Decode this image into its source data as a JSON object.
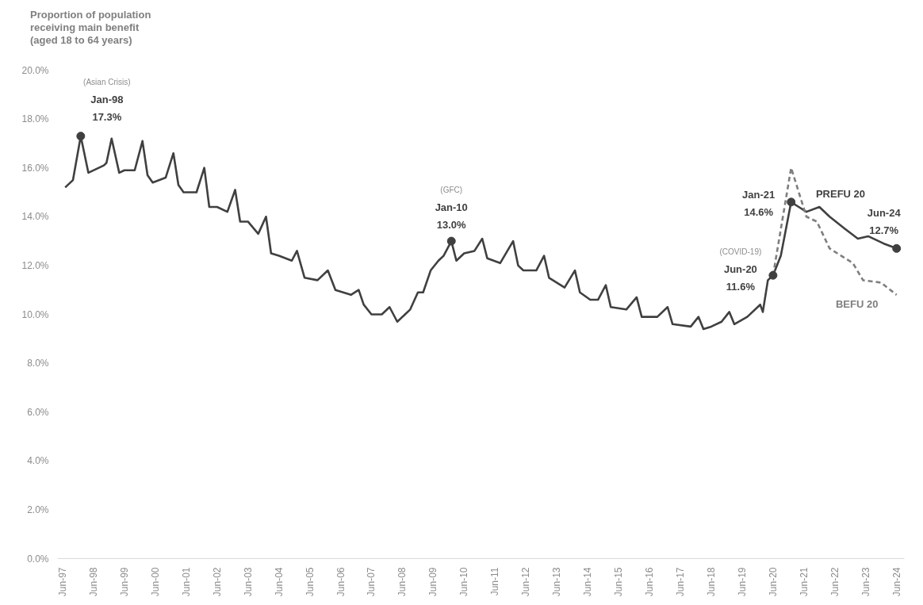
{
  "chart_data": {
    "type": "line",
    "ylabel": "Proportion of population\nreceiving main benefit\n(aged 18 to 64 years)",
    "xlim": [
      "1997-04",
      "2024-09"
    ],
    "xticks": [
      {
        "value": "1997-06",
        "label": "Jun-97"
      },
      {
        "value": "1998-06",
        "label": "Jun-98"
      },
      {
        "value": "1999-06",
        "label": "Jun-99"
      },
      {
        "value": "2000-06",
        "label": "Jun-00"
      },
      {
        "value": "2001-06",
        "label": "Jun-01"
      },
      {
        "value": "2002-06",
        "label": "Jun-02"
      },
      {
        "value": "2003-06",
        "label": "Jun-03"
      },
      {
        "value": "2004-06",
        "label": "Jun-04"
      },
      {
        "value": "2005-06",
        "label": "Jun-05"
      },
      {
        "value": "2006-06",
        "label": "Jun-06"
      },
      {
        "value": "2007-06",
        "label": "Jun-07"
      },
      {
        "value": "2008-06",
        "label": "Jun-08"
      },
      {
        "value": "2009-06",
        "label": "Jun-09"
      },
      {
        "value": "2010-06",
        "label": "Jun-10"
      },
      {
        "value": "2011-06",
        "label": "Jun-11"
      },
      {
        "value": "2012-06",
        "label": "Jun-12"
      },
      {
        "value": "2013-06",
        "label": "Jun-13"
      },
      {
        "value": "2014-06",
        "label": "Jun-14"
      },
      {
        "value": "2015-06",
        "label": "Jun-15"
      },
      {
        "value": "2016-06",
        "label": "Jun-16"
      },
      {
        "value": "2017-06",
        "label": "Jun-17"
      },
      {
        "value": "2018-06",
        "label": "Jun-18"
      },
      {
        "value": "2019-06",
        "label": "Jun-19"
      },
      {
        "value": "2020-06",
        "label": "Jun-20"
      },
      {
        "value": "2021-06",
        "label": "Jun-21"
      },
      {
        "value": "2022-06",
        "label": "Jun-22"
      },
      {
        "value": "2023-06",
        "label": "Jun-23"
      },
      {
        "value": "2024-06",
        "label": "Jun-24"
      }
    ],
    "ylim": [
      0,
      20
    ],
    "yticks": [
      {
        "value": 0,
        "label": "0.0%"
      },
      {
        "value": 2,
        "label": "2.0%"
      },
      {
        "value": 4,
        "label": "4.0%"
      },
      {
        "value": 6,
        "label": "6.0%"
      },
      {
        "value": 8,
        "label": "8.0%"
      },
      {
        "value": 10,
        "label": "10.0%"
      },
      {
        "value": 12,
        "label": "12.0%"
      },
      {
        "value": 14,
        "label": "14.0%"
      },
      {
        "value": 16,
        "label": "16.0%"
      },
      {
        "value": 18,
        "label": "18.0%"
      },
      {
        "value": 20,
        "label": "20.0%"
      }
    ],
    "grid": false,
    "legend": false,
    "series": [
      {
        "color": "#404040",
        "line_style": "solid",
        "x": [
          "1997-07",
          "1997-10",
          "1998-01",
          "1998-04",
          "1998-10",
          "1998-11",
          "1999-01",
          "1999-04",
          "1999-06",
          "1999-10",
          "2000-01",
          "2000-03",
          "2000-05",
          "2000-10",
          "2001-01",
          "2001-03",
          "2001-05",
          "2001-10",
          "2002-01",
          "2002-03",
          "2002-06",
          "2002-10",
          "2003-01",
          "2003-03",
          "2003-06",
          "2003-10",
          "2004-01",
          "2004-03",
          "2004-06",
          "2004-11",
          "2005-01",
          "2005-04",
          "2005-09",
          "2006-01",
          "2006-04",
          "2006-10",
          "2007-01",
          "2007-03",
          "2007-06",
          "2007-10",
          "2008-01",
          "2008-04",
          "2008-09",
          "2008-12",
          "2009-02",
          "2009-05",
          "2009-08",
          "2009-10",
          "2010-01",
          "2010-03",
          "2010-06",
          "2010-10",
          "2011-01",
          "2011-03",
          "2011-08",
          "2012-01",
          "2012-03",
          "2012-05",
          "2012-10",
          "2013-01",
          "2013-03",
          "2013-09",
          "2014-01",
          "2014-03",
          "2014-07",
          "2014-10",
          "2015-01",
          "2015-03",
          "2015-09",
          "2016-01",
          "2016-03",
          "2016-09",
          "2017-01",
          "2017-03",
          "2017-10",
          "2018-01",
          "2018-03",
          "2018-06",
          "2018-10",
          "2019-01",
          "2019-03",
          "2019-08",
          "2020-01",
          "2020-02",
          "2020-04",
          "2020-06",
          "2020-09",
          "2021-01",
          "2021-04",
          "2021-07",
          "2021-12",
          "2022-04",
          "2022-10",
          "2023-03",
          "2023-07",
          "2024-01",
          "2024-06"
        ],
        "values": [
          15.2,
          15.5,
          17.3,
          15.8,
          16.1,
          16.2,
          17.2,
          15.8,
          15.9,
          15.9,
          17.1,
          15.7,
          15.4,
          15.6,
          16.6,
          15.3,
          15.0,
          15.0,
          16.0,
          14.4,
          14.4,
          14.2,
          15.1,
          13.8,
          13.8,
          13.3,
          14.0,
          12.5,
          12.4,
          12.2,
          12.6,
          11.5,
          11.4,
          11.8,
          11.0,
          10.8,
          11.0,
          10.4,
          10.0,
          10.0,
          10.3,
          9.7,
          10.2,
          10.9,
          10.9,
          11.8,
          12.2,
          12.4,
          13.0,
          12.2,
          12.5,
          12.6,
          13.1,
          12.3,
          12.1,
          13.0,
          12.0,
          11.8,
          11.8,
          12.4,
          11.5,
          11.1,
          11.8,
          10.9,
          10.6,
          10.6,
          11.2,
          10.3,
          10.2,
          10.7,
          9.9,
          9.9,
          10.3,
          9.6,
          9.5,
          9.9,
          9.4,
          9.5,
          9.7,
          10.1,
          9.6,
          9.9,
          10.4,
          10.1,
          11.4,
          11.6,
          12.4,
          14.6,
          14.4,
          14.2,
          14.4,
          14.0,
          13.5,
          13.1,
          13.2,
          12.9,
          12.7
        ]
      },
      {
        "name": "BEFU 20",
        "color": "#7f7f7f",
        "line_style": "dashed",
        "x": [
          "2020-06",
          "2021-01",
          "2021-07",
          "2021-11",
          "2022-04",
          "2023-01",
          "2023-05",
          "2023-12",
          "2024-06"
        ],
        "values": [
          11.6,
          16.0,
          14.0,
          13.8,
          12.7,
          12.1,
          11.4,
          11.3,
          10.8
        ]
      },
      {
        "type": "scatter",
        "marker": "circle",
        "color": "#404040",
        "x": [
          "1998-01",
          "2010-01",
          "2020-06",
          "2021-01",
          "2024-06"
        ],
        "values": [
          17.3,
          13.0,
          11.6,
          14.6,
          12.7
        ]
      }
    ],
    "annotations": [
      {
        "text": "(Asian Crisis)\nJan-98\n17.3%",
        "x": "1998-01",
        "y": 17.3
      },
      {
        "text": "(GFC)\nJan-10\n13.0%",
        "x": "2010-01",
        "y": 13.0
      },
      {
        "text": "(COVID-19)\nJun-20\n11.6%",
        "x": "2020-06",
        "y": 11.6
      },
      {
        "text": "Jan-21\n14.6%",
        "x": "2021-01",
        "y": 14.6
      },
      {
        "text": "Jun-24\n12.7%",
        "x": "2024-06",
        "y": 12.7
      },
      "PREFU 20"
    ]
  }
}
